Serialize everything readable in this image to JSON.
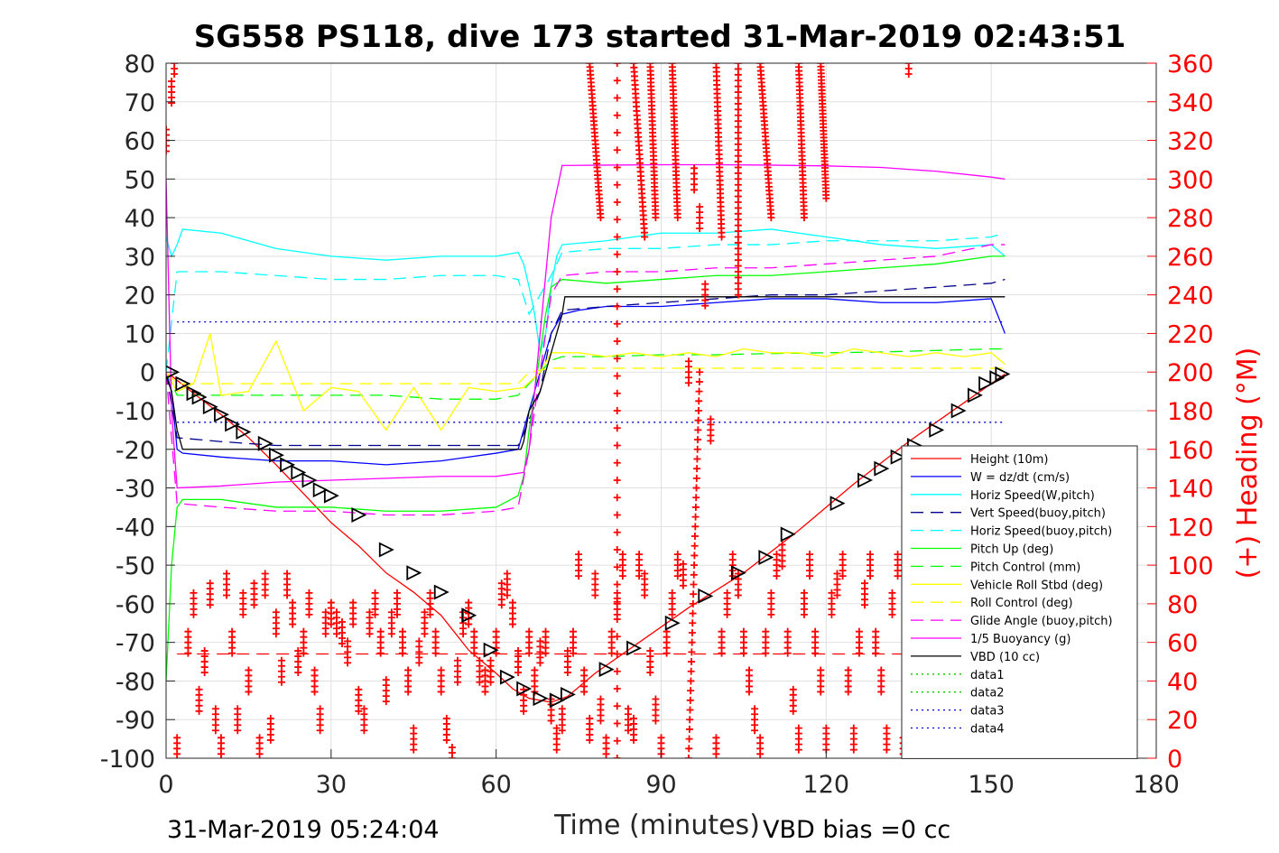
{
  "chart_data": {
    "type": "line",
    "title": "SG558 PS118, dive 173 started 31-Mar-2019 02:43:51",
    "xlabel": "Time (minutes)",
    "ylabel_left": "",
    "ylabel_right": "(+) Heading (°M)",
    "xlim": [
      0,
      180
    ],
    "ylim_left": [
      -100,
      80
    ],
    "ylim_right": [
      0,
      360
    ],
    "x_ticks": [
      "0",
      "30",
      "60",
      "90",
      "120",
      "150",
      "180"
    ],
    "y_ticks_left": [
      "-100",
      "-90",
      "-80",
      "-70",
      "-60",
      "-50",
      "-40",
      "-30",
      "-20",
      "-10",
      "0",
      "10",
      "20",
      "30",
      "40",
      "50",
      "60",
      "70",
      "80"
    ],
    "y_ticks_right": [
      "0",
      "20",
      "40",
      "60",
      "80",
      "100",
      "120",
      "140",
      "160",
      "180",
      "200",
      "220",
      "240",
      "260",
      "280",
      "300",
      "320",
      "340",
      "360"
    ],
    "grid": true,
    "legend_position": "lower-right",
    "footer_left": "31-Mar-2019 05:24:04",
    "footer_right": "VBD bias =0 cc",
    "colors": {
      "red": "#ff0000",
      "blue": "#0000ff",
      "cyan": "#00ffff",
      "darkblue": "#00008b",
      "green": "#00ff00",
      "yellow": "#ffff00",
      "magenta": "#ff00ff",
      "black": "#000000",
      "dotgreen": "#00cc00",
      "dotblue": "#0000cc"
    },
    "series": [
      {
        "name": "Height (10m)",
        "color": "red",
        "style": "solid",
        "x": [
          0,
          1,
          5,
          10,
          15,
          20,
          25,
          30,
          35,
          40,
          45,
          50,
          55,
          60,
          63,
          66,
          70,
          73,
          78,
          85,
          95,
          105,
          115,
          125,
          135,
          145,
          150,
          152.5
        ],
        "y": [
          -0.5,
          -1,
          -5.5,
          -11,
          -17,
          -24,
          -31.5,
          -39,
          -45,
          -52,
          -57,
          -63,
          -72,
          -78,
          -82,
          -84.5,
          -85.5,
          -84,
          -78,
          -71,
          -61,
          -52,
          -41,
          -29,
          -18,
          -8,
          -3,
          -0.5
        ]
      },
      {
        "name": "W = dz/dt (cm/s)",
        "color": "blue",
        "style": "solid",
        "x": [
          0,
          1,
          2,
          3,
          10,
          20,
          30,
          40,
          50,
          60,
          64,
          65,
          66,
          68,
          70,
          72,
          75,
          80,
          90,
          100,
          110,
          120,
          130,
          140,
          150,
          152.5
        ],
        "y": [
          0,
          -5,
          -20,
          -21,
          -22,
          -23,
          -23,
          -24,
          -23,
          -21,
          -20,
          -15,
          -10,
          0,
          10,
          15,
          16,
          17,
          17,
          18,
          19,
          19,
          18,
          18,
          19,
          10
        ]
      },
      {
        "name": "Horiz Speed(W,pitch)",
        "color": "cyan",
        "style": "solid",
        "x": [
          0,
          1,
          2,
          3,
          10,
          20,
          30,
          40,
          50,
          60,
          64,
          65,
          66,
          67,
          68,
          69,
          70,
          71,
          72,
          80,
          90,
          100,
          110,
          120,
          130,
          140,
          150,
          152.5
        ],
        "y": [
          35,
          30,
          33,
          37,
          36,
          32,
          30,
          29,
          30,
          30,
          31,
          28,
          22,
          15,
          5,
          10,
          22,
          30,
          33,
          34,
          36,
          36,
          37,
          35,
          33,
          32,
          33,
          30
        ]
      },
      {
        "name": "Vert Speed(buoy,pitch)",
        "color": "darkblue",
        "style": "dashed",
        "x": [
          0,
          2,
          10,
          20,
          30,
          40,
          50,
          60,
          64,
          65,
          68,
          70,
          72,
          80,
          90,
          100,
          110,
          120,
          130,
          140,
          150,
          152.5
        ],
        "y": [
          0,
          -17,
          -18,
          -19,
          -19,
          -19,
          -19,
          -19,
          -19,
          -16,
          -5,
          10,
          16,
          17,
          18,
          19,
          20,
          20,
          21,
          22,
          23,
          24
        ]
      },
      {
        "name": "Horiz Speed(buoy,pitch)",
        "color": "cyan",
        "style": "dashed",
        "x": [
          0,
          2,
          10,
          20,
          30,
          40,
          50,
          60,
          64,
          66,
          70,
          72,
          80,
          90,
          100,
          110,
          120,
          130,
          140,
          150,
          152.5
        ],
        "y": [
          0,
          26,
          26,
          25,
          24,
          24,
          25,
          25,
          24,
          15,
          25,
          31,
          32,
          32,
          33,
          33,
          34,
          34,
          34,
          35,
          36
        ]
      },
      {
        "name": "Pitch Up (deg)",
        "color": "green",
        "style": "solid",
        "x": [
          0,
          1,
          2,
          3,
          10,
          20,
          30,
          40,
          50,
          60,
          64,
          65,
          66,
          67,
          68,
          69,
          70,
          72,
          80,
          90,
          100,
          110,
          120,
          130,
          140,
          150,
          152.5
        ],
        "y": [
          -80,
          -50,
          -35,
          -33,
          -33,
          -35,
          -35,
          -36,
          -36,
          -35,
          -32,
          -27,
          -15,
          -5,
          5,
          15,
          22,
          24,
          23,
          24,
          25,
          25,
          26,
          27,
          28,
          30,
          30
        ]
      },
      {
        "name": "Pitch Control (mm)",
        "color": "green",
        "style": "dashed",
        "x": [
          0,
          2,
          10,
          20,
          30,
          40,
          50,
          60,
          64,
          66,
          68,
          70,
          72,
          80,
          90,
          100,
          110,
          120,
          130,
          140,
          150,
          152.5
        ],
        "y": [
          0,
          -6,
          -6,
          -6,
          -6,
          -6,
          -7,
          -7,
          -6,
          -3,
          0,
          3,
          4,
          4,
          4.5,
          4.5,
          4.8,
          5,
          5.2,
          5.6,
          6,
          6
        ]
      },
      {
        "name": "Vehicle Roll Stbd (deg)",
        "color": "yellow",
        "style": "solid",
        "x": [
          0,
          2,
          5,
          8,
          10,
          15,
          20,
          25,
          30,
          35,
          40,
          45,
          50,
          55,
          60,
          65,
          68,
          70,
          75,
          80,
          85,
          90,
          95,
          100,
          105,
          110,
          115,
          120,
          125,
          130,
          135,
          140,
          145,
          150,
          152.5
        ],
        "y": [
          0,
          -5,
          -3,
          10,
          -6,
          -5,
          8,
          -10,
          -4,
          -5,
          -15,
          -4,
          -15,
          -4,
          -5,
          -4,
          0,
          5,
          5,
          4,
          5,
          4,
          5,
          4,
          6,
          5,
          5,
          4,
          6,
          5,
          4,
          5,
          4,
          5,
          2
        ]
      },
      {
        "name": "Roll Control (deg)",
        "color": "yellow",
        "style": "dashed",
        "x": [
          0,
          2,
          60,
          64,
          66,
          70,
          150,
          152.5
        ],
        "y": [
          0,
          -3,
          -3,
          -3,
          0,
          1,
          1,
          1
        ]
      },
      {
        "name": "Glide Angle (buoy,pitch)",
        "color": "magenta",
        "style": "dashed",
        "x": [
          0,
          2,
          10,
          20,
          30,
          40,
          50,
          60,
          64,
          66,
          70,
          72,
          80,
          90,
          100,
          110,
          120,
          130,
          140,
          150,
          152.5
        ],
        "y": [
          0,
          -34,
          -35,
          -36,
          -36,
          -37,
          -37,
          -36,
          -35,
          -20,
          20,
          25,
          26,
          26,
          27,
          27,
          28,
          29,
          30,
          33,
          33
        ]
      },
      {
        "name": "1/5 Buoyancy (g)",
        "color": "magenta",
        "style": "solid",
        "x": [
          0,
          0.5,
          1,
          2,
          10,
          20,
          30,
          40,
          50,
          60,
          65,
          66,
          68,
          70,
          72,
          80,
          90,
          100,
          110,
          120,
          130,
          140,
          150,
          152.5
        ],
        "y": [
          50,
          20,
          -10,
          -30,
          -29.5,
          -28.5,
          -28,
          -27.5,
          -27,
          -27,
          -26,
          -20,
          10,
          40,
          53.5,
          53.6,
          53.7,
          53.7,
          53.6,
          53.4,
          53,
          52,
          50.5,
          50
        ]
      },
      {
        "name": "VBD (10 cc)",
        "color": "black",
        "style": "solid",
        "x": [
          0,
          1,
          2,
          3,
          64.5,
          65,
          66,
          68,
          70,
          72,
          72.5,
          152.5
        ],
        "y": [
          -1,
          -5,
          -15,
          -20,
          -20,
          -18,
          -10,
          -5,
          5,
          15,
          19.5,
          19.5
        ]
      },
      {
        "name": "data1",
        "color": "dotgreen",
        "style": "dotted",
        "x": [],
        "y": []
      },
      {
        "name": "data2",
        "color": "dotgreen",
        "style": "dotted",
        "x": [],
        "y": []
      },
      {
        "name": "data3",
        "color": "dotblue",
        "style": "dotted",
        "x": [
          2,
          152.5
        ],
        "y": [
          13,
          13
        ]
      },
      {
        "name": "data4",
        "color": "dotblue",
        "style": "dotted",
        "x": [
          2,
          152.5
        ],
        "y": [
          -13,
          -13
        ]
      }
    ],
    "extra_lines": [
      {
        "color": "red",
        "style": "dashed",
        "x": [
          2,
          150
        ],
        "y": [
          -73,
          -73
        ]
      }
    ],
    "triangle_markers": {
      "color": "black",
      "x": [
        1,
        3,
        5,
        6,
        8,
        10,
        12,
        14,
        18,
        20,
        22,
        24,
        26,
        28,
        30,
        35,
        40,
        45,
        50,
        55,
        59,
        62,
        65,
        68,
        71,
        73,
        80,
        85,
        92,
        98,
        104,
        109,
        113,
        122,
        127,
        130,
        133,
        136,
        140,
        144,
        147,
        149,
        151,
        152
      ],
      "y": [
        0,
        -3,
        -5.5,
        -6.5,
        -9,
        -11,
        -13.5,
        -15.5,
        -18.5,
        -21.5,
        -24,
        -26,
        -28,
        -30.5,
        -32,
        -37,
        -46,
        -52,
        -57,
        -63,
        -72,
        -79,
        -82,
        -84.5,
        -85,
        -83.5,
        -77,
        -71.5,
        -65,
        -58,
        -52,
        -48,
        -42,
        -34,
        -28,
        -25,
        -22,
        -19,
        -15,
        -10,
        -6,
        -3,
        -1.5,
        -0.5
      ]
    },
    "heading_markers": {
      "color": "red",
      "axis": "right",
      "x": [
        0,
        1,
        1.5,
        2,
        4,
        5,
        6,
        7,
        8,
        9,
        10,
        11,
        12,
        13,
        14,
        15,
        16,
        17,
        18,
        19,
        20,
        21,
        22,
        23,
        24,
        25,
        26,
        27,
        28,
        29,
        30,
        31,
        32,
        33,
        34,
        35,
        36,
        37,
        38,
        39,
        40,
        41,
        42,
        43,
        44,
        45,
        46,
        47,
        48,
        49,
        50,
        51,
        52,
        53,
        54,
        55,
        56,
        57,
        58,
        59,
        60,
        61,
        62,
        63,
        64,
        65,
        66,
        67,
        68,
        69,
        70,
        71,
        72,
        73,
        74,
        75,
        76,
        77,
        78,
        79,
        80,
        81,
        82,
        83,
        84,
        85,
        86,
        87,
        88,
        89,
        90,
        91,
        92,
        93,
        94,
        95,
        96,
        97,
        98,
        99,
        100,
        101,
        102,
        103,
        104,
        105,
        106,
        107,
        108,
        109,
        110,
        111,
        112,
        113,
        114,
        115,
        116,
        117,
        118,
        119,
        120,
        121,
        122,
        123,
        124,
        125,
        126,
        127,
        128,
        129,
        130,
        131,
        132,
        133,
        134,
        135
      ],
      "y": [
        320,
        345,
        360,
        5,
        60,
        80,
        30,
        50,
        85,
        20,
        5,
        90,
        60,
        20,
        80,
        40,
        85,
        5,
        90,
        15,
        70,
        45,
        90,
        75,
        50,
        60,
        80,
        40,
        20,
        70,
        75,
        70,
        65,
        55,
        75,
        30,
        20,
        70,
        80,
        60,
        35,
        70,
        80,
        60,
        40,
        10,
        55,
        70,
        80,
        60,
        40,
        15,
        0,
        45,
        70,
        75,
        60,
        45,
        40,
        45,
        60,
        85,
        90,
        75,
        50,
        30,
        60,
        40,
        55,
        60,
        25,
        10,
        20,
        50,
        60,
        100,
        40,
        15,
        90,
        25,
        5,
        60,
        80,
        100,
        20,
        15,
        100,
        90,
        50,
        25,
        5,
        60,
        80,
        100,
        95,
        200,
        300,
        280,
        240,
        170,
        5,
        60,
        80,
        100,
        90,
        60,
        40,
        20,
        5,
        60,
        80,
        100,
        105,
        60,
        30,
        10,
        80,
        100,
        60,
        40,
        10,
        80,
        90,
        100,
        40,
        10,
        60,
        85,
        100,
        60,
        40,
        10,
        80,
        100,
        5,
        360
      ]
    },
    "heading_streaks": {
      "color": "red",
      "axis": "right",
      "items": [
        {
          "x0": 77,
          "y0": 360,
          "x1": 79,
          "y1": 280
        },
        {
          "x0": 82,
          "y0": 360,
          "x1": 82,
          "y1": 0
        },
        {
          "x0": 85,
          "y0": 360,
          "x1": 87,
          "y1": 270
        },
        {
          "x0": 88,
          "y0": 360,
          "x1": 89,
          "y1": 280
        },
        {
          "x0": 92,
          "y0": 360,
          "x1": 93,
          "y1": 280
        },
        {
          "x0": 100,
          "y0": 360,
          "x1": 101,
          "y1": 270
        },
        {
          "x0": 104,
          "y0": 360,
          "x1": 104,
          "y1": 240
        },
        {
          "x0": 108,
          "y0": 360,
          "x1": 110,
          "y1": 280
        },
        {
          "x0": 115,
          "y0": 360,
          "x1": 116,
          "y1": 280
        },
        {
          "x0": 119,
          "y0": 360,
          "x1": 120,
          "y1": 290
        },
        {
          "x0": 95,
          "y0": 0,
          "x1": 97,
          "y1": 200
        }
      ]
    }
  }
}
